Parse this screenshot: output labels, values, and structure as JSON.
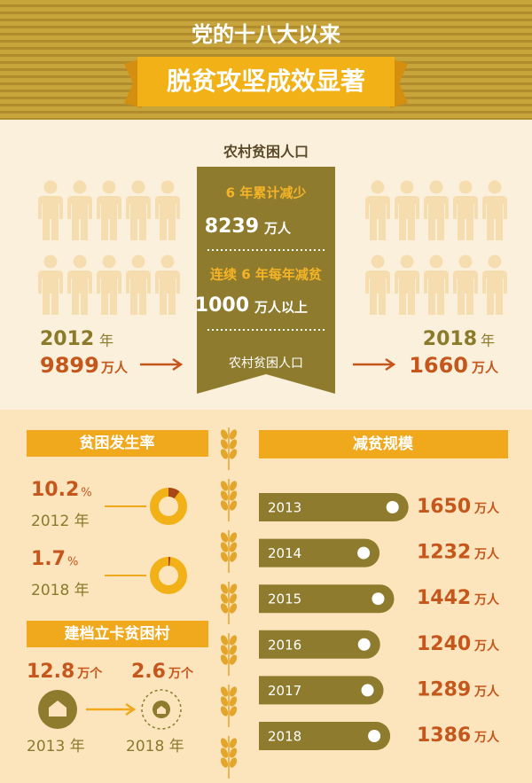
{
  "header": {
    "title": "党的十八大以来",
    "subtitle": "脱贫攻坚成效显著"
  },
  "rural": {
    "title": "农村贫困人口",
    "left": {
      "year": "2012",
      "year_unit": "年",
      "value": 9899,
      "unit": "万人"
    },
    "right": {
      "year": "2018",
      "year_unit": "年",
      "value": 1660,
      "unit": "万人"
    },
    "panel": {
      "line1": "6 年累计减少",
      "value1": 8239,
      "unit1": "万人",
      "line2": "连续 6 年每年减贫",
      "value2": 1000,
      "unit2": "万人以上",
      "footer": "农村贫困人口"
    }
  },
  "incidence": {
    "title": "贫困发生率",
    "items": [
      {
        "value": 10.2,
        "unit": "%",
        "year": "2012 年"
      },
      {
        "value": 1.7,
        "unit": "%",
        "year": "2018 年"
      }
    ]
  },
  "villages": {
    "title": "建档立卡贫困村",
    "items": [
      {
        "value": 12.8,
        "unit": "万个",
        "year": "2013 年"
      },
      {
        "value": 2.6,
        "unit": "万个",
        "year": "2018 年"
      }
    ]
  },
  "reduction": {
    "title": "减贫规模",
    "unit": "万人",
    "years": [
      "2013",
      "2014",
      "2015",
      "2016",
      "2017",
      "2018"
    ],
    "values": [
      1650,
      1232,
      1442,
      1240,
      1289,
      1386
    ]
  }
}
